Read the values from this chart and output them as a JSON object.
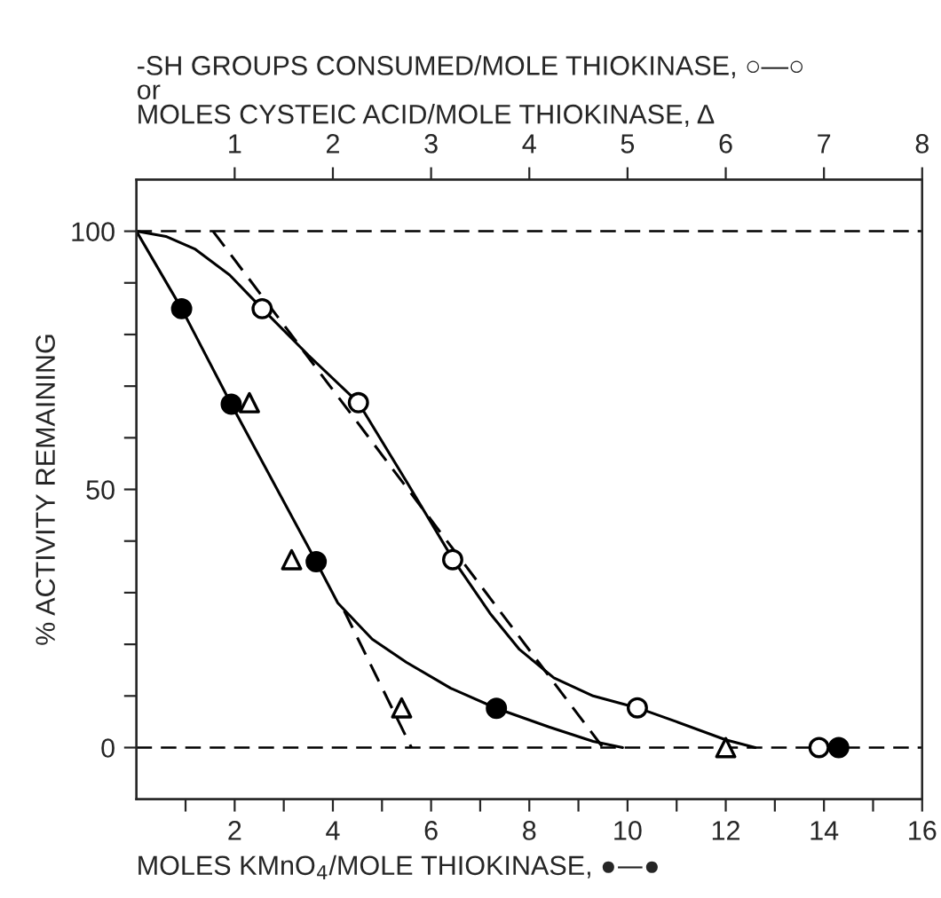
{
  "chart_data": {
    "type": "line",
    "xlabel": "MOLES KMnO$_{4}$/MOLE THIOKINASE, ●—●",
    "x2label": "-SH GROUPS CONSUMED/MOLE THIOKINASE, ○—○\nor\nMOLES CYSTEIC ACID/MOLE THIOKINASE, Δ",
    "ylabel": "% ACTIVITY REMAINING",
    "xlim": [
      0,
      16
    ],
    "xticks": [
      {
        "value": 1,
        "label": null
      },
      2,
      {
        "value": 3,
        "label": null
      },
      4,
      {
        "value": 5,
        "label": null
      },
      6,
      {
        "value": 7,
        "label": null
      },
      8,
      {
        "value": 9,
        "label": null
      },
      10,
      {
        "value": 11,
        "label": null
      },
      12,
      {
        "value": 13,
        "label": null
      },
      14,
      {
        "value": 15,
        "label": null
      },
      16
    ],
    "x2lim": [
      0,
      8
    ],
    "x2ticks": [
      1,
      2,
      3,
      4,
      5,
      6,
      7,
      8
    ],
    "ylim": [
      -10,
      110
    ],
    "yticks": [
      0,
      {
        "value": 10,
        "label": null
      },
      {
        "value": 20,
        "label": null
      },
      {
        "value": 30,
        "label": null
      },
      {
        "value": 40,
        "label": null
      },
      50,
      {
        "value": 60,
        "label": null
      },
      {
        "value": 70,
        "label": null
      },
      {
        "value": 80,
        "label": null
      },
      {
        "value": 90,
        "label": null
      },
      100
    ],
    "grid": false,
    "legend": false,
    "ref_lines": [
      {
        "axis": "y",
        "value": 100,
        "color": "#000000",
        "line_style": "dashed"
      },
      {
        "axis": "y",
        "value": 0,
        "color": "#000000",
        "line_style": "dashed"
      }
    ],
    "series": [
      {
        "color": "#000000",
        "line_style": "solid",
        "x": [
          0,
          0.92,
          1.93,
          3.66,
          4.1,
          4.8,
          5.5,
          6.4,
          7.33,
          8.4,
          9.3,
          9.9
        ],
        "values": [
          100,
          85,
          66.5,
          36,
          28,
          21,
          16.5,
          11.5,
          7.6,
          4,
          1.2,
          0
        ]
      },
      {
        "color": "#000000",
        "line_style": "solid",
        "x": [
          0,
          0.6,
          1.2,
          1.9,
          2.56,
          3.5,
          4.52,
          5.5,
          6.45,
          7.2,
          7.8,
          8.5,
          9.3,
          10.2,
          11,
          12,
          12.6
        ],
        "values": [
          100,
          99,
          96.5,
          91.5,
          85,
          76,
          66.8,
          51.5,
          36.4,
          26,
          19,
          13.5,
          10,
          7.7,
          5,
          1.5,
          0
        ]
      },
      {
        "color": "#000000",
        "line_style": "dashed",
        "x": [
          1.56,
          9.5
        ],
        "values": [
          100,
          0
        ]
      },
      {
        "color": "#000000",
        "line_style": "dashed",
        "x": [
          4.23,
          5.6
        ],
        "values": [
          26.5,
          0
        ]
      },
      {
        "type": "scatter",
        "color": "#000000",
        "marker": "circle",
        "x": [
          0.92,
          1.93,
          3.66,
          7.33,
          14.3
        ],
        "values": [
          85,
          66.5,
          36,
          7.6,
          0
        ]
      },
      {
        "type": "scatter",
        "color": "#ffffff",
        "marker": "circle",
        "axis": "x2",
        "x": [
          1.28,
          2.26,
          3.22,
          5.1,
          6.95
        ],
        "values": [
          85,
          66.8,
          36.4,
          7.7,
          0
        ]
      },
      {
        "type": "scatter",
        "color": "#ffffff",
        "marker": "triangle",
        "axis": "x2",
        "x": [
          1.15,
          1.58,
          2.7,
          6.0
        ],
        "values": [
          66.8,
          36.4,
          7.7,
          0
        ]
      }
    ]
  }
}
